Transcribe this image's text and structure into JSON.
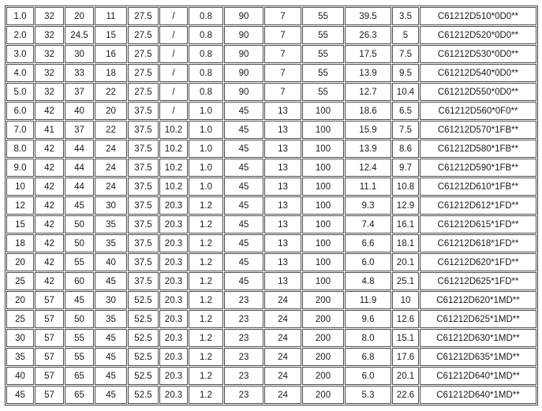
{
  "table": {
    "columns_count": 13,
    "rows": [
      [
        "1.0",
        "32",
        "20",
        "11",
        "27.5",
        "/",
        "0.8",
        "90",
        "7",
        "55",
        "39.5",
        "3.5",
        "C61212D510*0D0**"
      ],
      [
        "2.0",
        "32",
        "24.5",
        "15",
        "27.5",
        "/",
        "0.8",
        "90",
        "7",
        "55",
        "26.3",
        "5",
        "C61212D520*0D0**"
      ],
      [
        "3.0",
        "32",
        "30",
        "16",
        "27.5",
        "/",
        "0.8",
        "90",
        "7",
        "55",
        "17.5",
        "7.5",
        "C61212D530*0D0**"
      ],
      [
        "4.0",
        "32",
        "33",
        "18",
        "27.5",
        "/",
        "0.8",
        "90",
        "7",
        "55",
        "13.9",
        "9.5",
        "C61212D540*0D0**"
      ],
      [
        "5.0",
        "32",
        "37",
        "22",
        "27.5",
        "/",
        "0.8",
        "90",
        "7",
        "55",
        "12.7",
        "10.4",
        "C61212D550*0D0**"
      ],
      [
        "6.0",
        "42",
        "40",
        "20",
        "37.5",
        "/",
        "1.0",
        "45",
        "13",
        "100",
        "18.6",
        "6.5",
        "C61212D560*0F0**"
      ],
      [
        "7.0",
        "41",
        "37",
        "22",
        "37.5",
        "10.2",
        "1.0",
        "45",
        "13",
        "100",
        "15.9",
        "7.5",
        "C61212D570*1FB**"
      ],
      [
        "8.0",
        "42",
        "44",
        "24",
        "37.5",
        "10.2",
        "1.0",
        "45",
        "13",
        "100",
        "13.9",
        "8.6",
        "C61212D580*1FB**"
      ],
      [
        "9.0",
        "42",
        "44",
        "24",
        "37.5",
        "10.2",
        "1.0",
        "45",
        "13",
        "100",
        "12.4",
        "9.7",
        "C61212D590*1FB**"
      ],
      [
        "10",
        "42",
        "44",
        "24",
        "37.5",
        "10.2",
        "1.0",
        "45",
        "13",
        "100",
        "11.1",
        "10.8",
        "C61212D610*1FB**"
      ],
      [
        "12",
        "42",
        "45",
        "30",
        "37.5",
        "20.3",
        "1.2",
        "45",
        "13",
        "100",
        "9.3",
        "12.9",
        "C61212D612*1FD**"
      ],
      [
        "15",
        "42",
        "50",
        "35",
        "37.5",
        "20.3",
        "1.2",
        "45",
        "13",
        "100",
        "7.4",
        "16.1",
        "C61212D615*1FD**"
      ],
      [
        "18",
        "42",
        "50",
        "35",
        "37.5",
        "20.3",
        "1.2",
        "45",
        "13",
        "100",
        "6.6",
        "18.1",
        "C61212D618*1FD**"
      ],
      [
        "20",
        "42",
        "55",
        "40",
        "37.5",
        "20.3",
        "1.2",
        "45",
        "13",
        "100",
        "6.0",
        "20.1",
        "C61212D620*1FD**"
      ],
      [
        "25",
        "42",
        "60",
        "45",
        "37.5",
        "20.3",
        "1.2",
        "45",
        "13",
        "100",
        "4.8",
        "25.1",
        "C61212D625*1FD**"
      ],
      [
        "20",
        "57",
        "45",
        "30",
        "52.5",
        "20.3",
        "1.2",
        "23",
        "24",
        "200",
        "11.9",
        "10",
        "C61212D620*1MD**"
      ],
      [
        "25",
        "57",
        "50",
        "35",
        "52.5",
        "20.3",
        "1.2",
        "23",
        "24",
        "200",
        "9.6",
        "12.6",
        "C61212D625*1MD**"
      ],
      [
        "30",
        "57",
        "55",
        "45",
        "52.5",
        "20.3",
        "1.2",
        "23",
        "24",
        "200",
        "8.0",
        "15.1",
        "C61212D630*1MD**"
      ],
      [
        "35",
        "57",
        "55",
        "45",
        "52.5",
        "20.3",
        "1.2",
        "23",
        "24",
        "200",
        "6.8",
        "17.6",
        "C61212D635*1MD**"
      ],
      [
        "40",
        "57",
        "65",
        "45",
        "52.5",
        "20.3",
        "1.2",
        "23",
        "24",
        "200",
        "6.0",
        "20.1",
        "C61212D640*1MD**"
      ],
      [
        "45",
        "57",
        "65",
        "45",
        "52.5",
        "20.3",
        "1.2",
        "23",
        "24",
        "200",
        "5.3",
        "22.6",
        "C61212D640*1MD**"
      ]
    ]
  }
}
